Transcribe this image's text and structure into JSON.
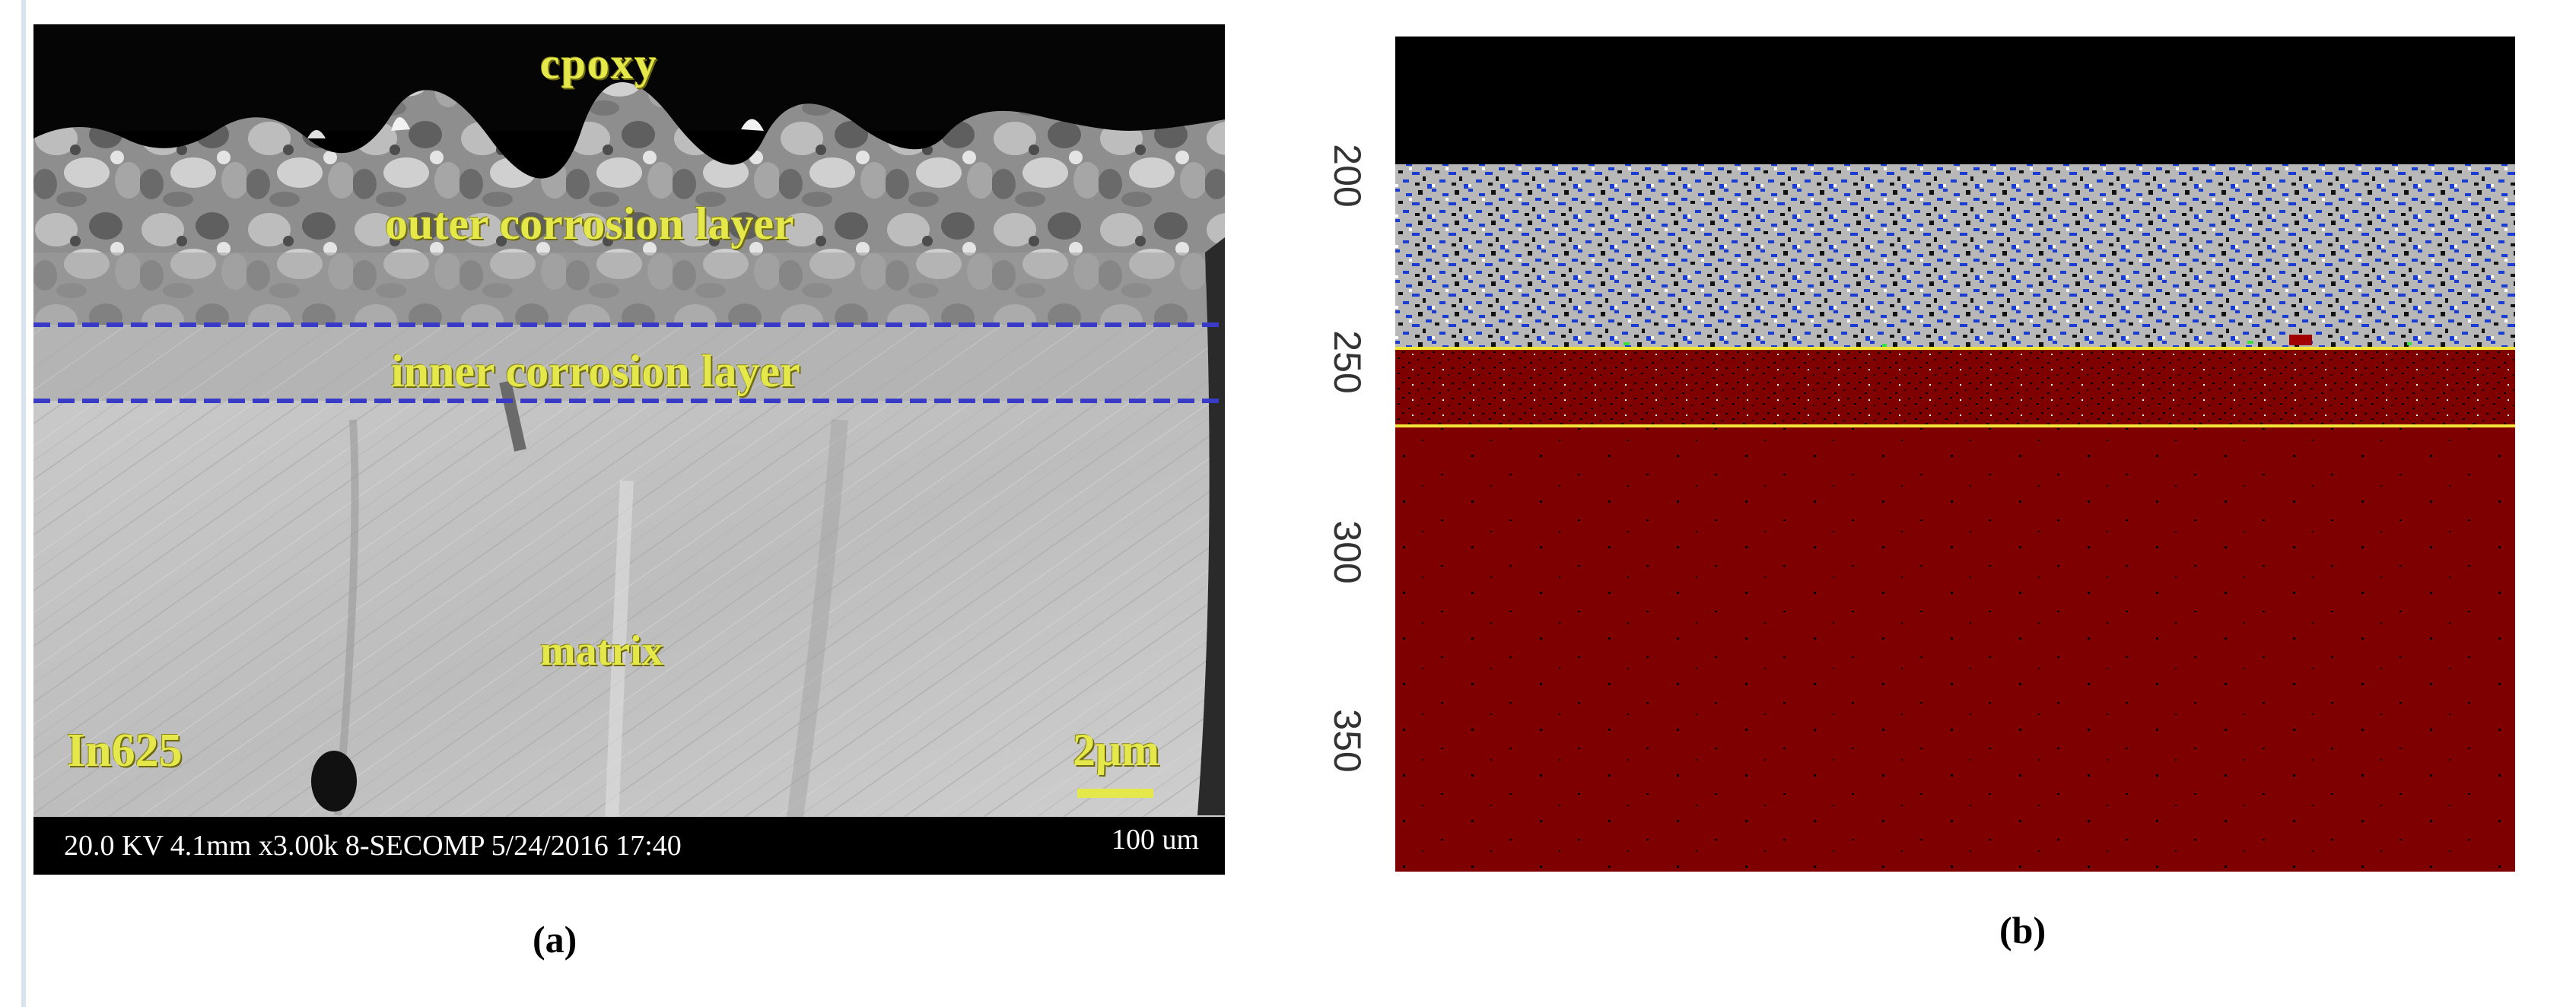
{
  "panel_a": {
    "labels": {
      "epoxy": "cpoxy",
      "outer_layer": "outer corrosion layer",
      "inner_layer": "inner corrosion layer",
      "matrix": "matrix",
      "alloy": "In625",
      "scale": "2μm"
    },
    "info_bar": {
      "metadata": "20.0 KV 4.1mm x3.00k 8-SECOMP 5/24/2016 17:40",
      "field_of_view": "100 um"
    },
    "caption": "(a)",
    "colors": {
      "label_yellow": "#e4e84a",
      "boundary_dashed": "#3a3ac8"
    }
  },
  "panel_b": {
    "y_ticks": [
      "200",
      "250",
      "300",
      "350"
    ],
    "caption": "(b)",
    "colors": {
      "background_region": "#000000",
      "outer_layer_blue": "#1a3cd0",
      "outer_layer_gray": "#b8b8b8",
      "matrix_red": "#7f0000",
      "boundary_lines": "#f2e53a"
    }
  }
}
